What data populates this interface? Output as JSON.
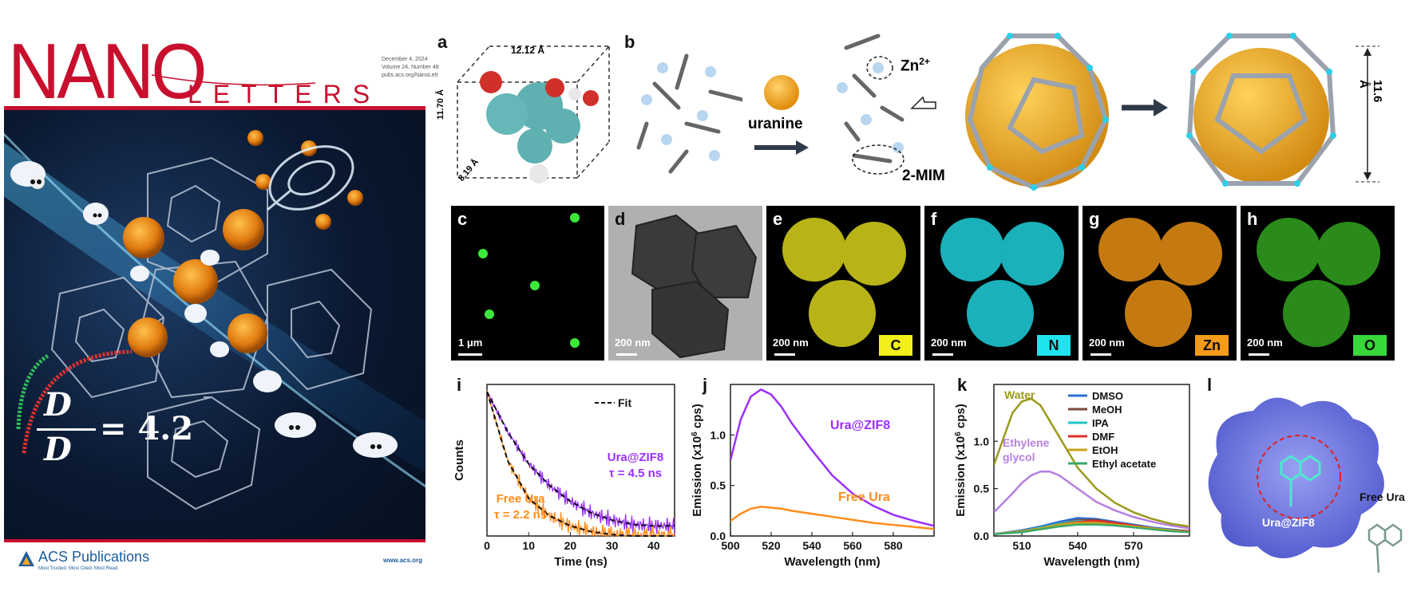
{
  "cover": {
    "title": "NANO",
    "subtitle": "LETTERS",
    "date": "December 4, 2024",
    "volume": "Volume 24, Number 48",
    "journal_url": "pubs.acs.org/NanoLett",
    "equation_rhs": "= 4.2",
    "equation_num": "D",
    "equation_den": "D",
    "publisher": "ACS Publications",
    "publisher_tagline": "Most Trusted. Most Cited. Most Read.",
    "website": "www.acs.org"
  },
  "panels": {
    "a": {
      "letter": "a",
      "dim1": "12.12 Å",
      "dim2": "11.70 Å",
      "dim3": "8.19 Å"
    },
    "b": {
      "letter": "b",
      "uranine": "uranine",
      "zn": "Zn",
      "zn_sup": "2+",
      "mim": "2-MIM",
      "size": "11.6 Å"
    },
    "c": {
      "letter": "c",
      "scale": "1 μm"
    },
    "d": {
      "letter": "d",
      "scale": "200 nm"
    },
    "e": {
      "letter": "e",
      "scale": "200 nm",
      "element": "C"
    },
    "f": {
      "letter": "f",
      "scale": "200 nm",
      "element": "N"
    },
    "g": {
      "letter": "g",
      "scale": "200 nm",
      "element": "Zn"
    },
    "h": {
      "letter": "h",
      "scale": "200 nm",
      "element": "O"
    },
    "i": {
      "letter": "i"
    },
    "j": {
      "letter": "j"
    },
    "k": {
      "letter": "k"
    },
    "l": {
      "letter": "l",
      "inside": "Ura@ZIF8",
      "outside": "Free Ura"
    }
  },
  "chart_data": [
    {
      "panel": "i",
      "type": "line",
      "xlabel": "Time (ns)",
      "ylabel": "Counts",
      "xlim": [
        0,
        45
      ],
      "xticks": [
        "0",
        "10",
        "20",
        "30",
        "40"
      ],
      "legend": "Fit",
      "series": [
        {
          "name": "Ura@ZIF8",
          "annotation": "τ = 4.5 ns",
          "color": "#9b30ff",
          "x": [
            0,
            5,
            10,
            15,
            20,
            25,
            30,
            35,
            40,
            45
          ],
          "y": [
            1.0,
            0.72,
            0.5,
            0.35,
            0.24,
            0.16,
            0.11,
            0.08,
            0.07,
            0.07
          ]
        },
        {
          "name": "Free Ura",
          "annotation": "τ = 2.2 ns",
          "color": "#ff8c1a",
          "x": [
            0,
            5,
            10,
            15,
            20,
            25,
            30,
            35,
            40,
            45
          ],
          "y": [
            1.0,
            0.52,
            0.26,
            0.14,
            0.07,
            0.03,
            0.01,
            0.0,
            0.0,
            0.0
          ]
        }
      ]
    },
    {
      "panel": "j",
      "type": "line",
      "xlabel": "Wavelength (nm)",
      "ylabel": "Emission (x10",
      "ylabel_sup": "6",
      "ylabel_end": " cps)",
      "xlim": [
        500,
        600
      ],
      "ylim": [
        0,
        1.5
      ],
      "xticks": [
        "500",
        "520",
        "540",
        "560",
        "580"
      ],
      "yticks": [
        "0.0",
        "0.5",
        "1.0"
      ],
      "series": [
        {
          "name": "Ura@ZIF8",
          "color": "#9b30ff",
          "x": [
            500,
            505,
            510,
            515,
            520,
            525,
            530,
            540,
            550,
            560,
            570,
            580,
            590,
            600
          ],
          "y": [
            0.75,
            1.15,
            1.38,
            1.45,
            1.4,
            1.28,
            1.12,
            0.85,
            0.6,
            0.42,
            0.3,
            0.21,
            0.15,
            0.1
          ]
        },
        {
          "name": "Free Ura",
          "color": "#ff8c1a",
          "x": [
            500,
            505,
            510,
            515,
            520,
            525,
            530,
            540,
            550,
            560,
            570,
            580,
            590,
            600
          ],
          "y": [
            0.15,
            0.22,
            0.27,
            0.29,
            0.28,
            0.27,
            0.25,
            0.22,
            0.19,
            0.16,
            0.13,
            0.11,
            0.09,
            0.07
          ]
        }
      ]
    },
    {
      "panel": "k",
      "type": "line",
      "xlabel": "Wavelength (nm)",
      "ylabel": "Emission (x10",
      "ylabel_sup": "6",
      "ylabel_end": " cps)",
      "xlim": [
        495,
        600
      ],
      "ylim": [
        0,
        1.6
      ],
      "xticks": [
        "510",
        "540",
        "570"
      ],
      "yticks": [
        "0.0",
        "0.5",
        "1.0"
      ],
      "annotations": [
        "Water",
        "Ethylene",
        "glycol"
      ],
      "series": [
        {
          "name": "Water",
          "color": "#9a9a1a",
          "x": [
            495,
            505,
            510,
            515,
            520,
            530,
            540,
            550,
            560,
            570,
            580,
            590,
            600
          ],
          "y": [
            0.75,
            1.3,
            1.42,
            1.45,
            1.38,
            1.05,
            0.72,
            0.5,
            0.35,
            0.25,
            0.18,
            0.13,
            0.1
          ]
        },
        {
          "name": "Ethylene glycol",
          "color": "#b57fe0",
          "x": [
            495,
            505,
            510,
            515,
            520,
            525,
            530,
            540,
            550,
            560,
            570,
            580,
            590,
            600
          ],
          "y": [
            0.25,
            0.45,
            0.56,
            0.64,
            0.68,
            0.68,
            0.64,
            0.5,
            0.36,
            0.27,
            0.2,
            0.15,
            0.11,
            0.08
          ]
        },
        {
          "name": "DMSO",
          "color": "#2a6fd6",
          "x": [
            495,
            510,
            520,
            530,
            540,
            550,
            560,
            570,
            580,
            590,
            600
          ],
          "y": [
            0.02,
            0.06,
            0.1,
            0.15,
            0.19,
            0.18,
            0.15,
            0.12,
            0.09,
            0.07,
            0.05
          ]
        },
        {
          "name": "MeOH",
          "color": "#7a4a3a",
          "x": [
            495,
            510,
            520,
            530,
            540,
            550,
            560,
            570,
            580,
            590,
            600
          ],
          "y": [
            0.02,
            0.05,
            0.09,
            0.13,
            0.17,
            0.17,
            0.14,
            0.11,
            0.08,
            0.06,
            0.05
          ]
        },
        {
          "name": "IPA",
          "color": "#22c4c4",
          "x": [
            495,
            510,
            520,
            530,
            540,
            550,
            560,
            570,
            580,
            590,
            600
          ],
          "y": [
            0.02,
            0.05,
            0.09,
            0.13,
            0.16,
            0.15,
            0.13,
            0.1,
            0.08,
            0.06,
            0.04
          ]
        },
        {
          "name": "DMF",
          "color": "#e0302a",
          "x": [
            495,
            510,
            520,
            530,
            540,
            550,
            560,
            570,
            580,
            590,
            600
          ],
          "y": [
            0.02,
            0.05,
            0.08,
            0.12,
            0.15,
            0.16,
            0.14,
            0.11,
            0.08,
            0.06,
            0.05
          ]
        },
        {
          "name": "EtOH",
          "color": "#c8a21a",
          "x": [
            495,
            510,
            520,
            530,
            540,
            550,
            560,
            570,
            580,
            590,
            600
          ],
          "y": [
            0.02,
            0.05,
            0.08,
            0.12,
            0.14,
            0.14,
            0.12,
            0.1,
            0.08,
            0.06,
            0.04
          ]
        },
        {
          "name": "Ethyl acetate",
          "color": "#3aa86a",
          "x": [
            495,
            510,
            520,
            530,
            540,
            550,
            560,
            570,
            580,
            590,
            600
          ],
          "y": [
            0.02,
            0.04,
            0.07,
            0.1,
            0.12,
            0.12,
            0.11,
            0.09,
            0.07,
            0.05,
            0.04
          ]
        }
      ]
    }
  ]
}
